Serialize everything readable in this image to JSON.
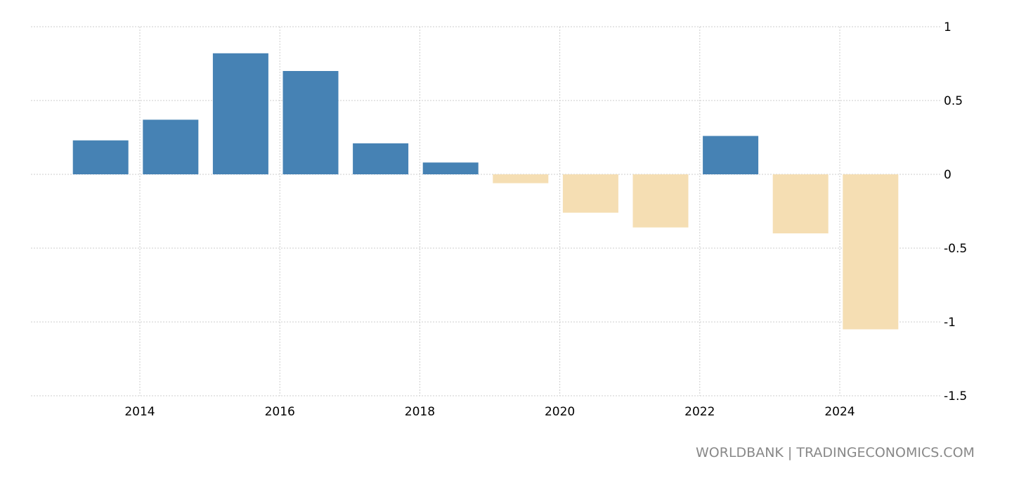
{
  "chart_data": {
    "type": "bar",
    "title": "",
    "xlabel": "",
    "ylabel": "",
    "categories": [
      "2013",
      "2014",
      "2015",
      "2016",
      "2017",
      "2018",
      "2019",
      "2020",
      "2021",
      "2022",
      "2023",
      "2024"
    ],
    "values": [
      0.23,
      0.37,
      0.82,
      0.7,
      0.21,
      0.08,
      -0.06,
      -0.26,
      -0.36,
      0.26,
      -0.4,
      -1.05
    ],
    "ylim": [
      -1.5,
      1
    ],
    "yticks": [
      "1",
      "0.5",
      "0",
      "-0.5",
      "-1",
      "-1.5"
    ],
    "ytick_values": [
      1,
      0.5,
      0,
      -0.5,
      -1,
      -1.5
    ],
    "xticks": [
      "2014",
      "2016",
      "2018",
      "2020",
      "2022",
      "2024"
    ],
    "xtick_values": [
      2014,
      2016,
      2018,
      2020,
      2022,
      2024
    ],
    "grid": true,
    "y_axis_side": "right",
    "colors": {
      "positive": "#4682b4",
      "negative": "#f5deb3",
      "grid": "#cccccc"
    }
  },
  "source": "WORLDBANK | TRADINGECONOMICS.COM"
}
